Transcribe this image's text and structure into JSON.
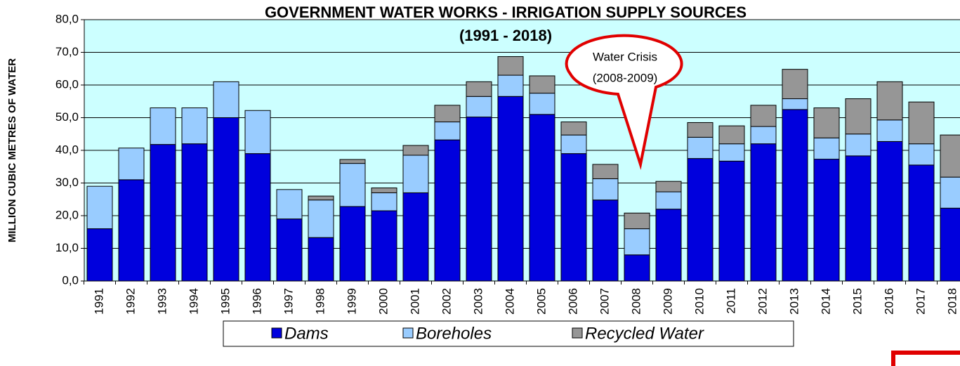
{
  "chart_data": {
    "type": "stacked_bar",
    "title": "GOVERNMENT WATER WORKS - IRRIGATION SUPPLY SOURCES",
    "subtitle": "(1991 - 2018)",
    "y_label": "MILLION CUBIC METRES OF WATER",
    "annotation": [
      "Water Crisis",
      "(2008-2009)"
    ],
    "categories": [
      "1991",
      "1992",
      "1993",
      "1994",
      "1995",
      "1996",
      "1997",
      "1998",
      "1999",
      "2000",
      "2001",
      "2002",
      "2003",
      "2004",
      "2005",
      "2006",
      "2007",
      "2008",
      "2009",
      "2010",
      "2011",
      "2012",
      "2013",
      "2014",
      "2015",
      "2016",
      "2017",
      "2018"
    ],
    "series": [
      {
        "name": "Dams",
        "color": "#0000dd",
        "values": [
          16,
          31,
          41.8,
          42,
          50,
          39,
          19,
          13.3,
          22.8,
          21.5,
          27,
          43.2,
          50.2,
          56.5,
          51,
          39,
          24.8,
          8,
          22,
          37.5,
          36.7,
          42,
          52.5,
          37.3,
          38.3,
          42.7,
          35.5,
          22.3
        ]
      },
      {
        "name": "Boreholes",
        "color": "#99ccff",
        "values": [
          13,
          9.7,
          11.2,
          11,
          11,
          13.2,
          9,
          11.5,
          13.2,
          5.5,
          11.5,
          5.5,
          6.3,
          6.5,
          6.5,
          5.7,
          6.5,
          8,
          5.3,
          6.5,
          5.3,
          5.3,
          3.3,
          6.5,
          6.7,
          6.6,
          6.5,
          9.5
        ]
      },
      {
        "name": "Recycled Water",
        "color": "#969696",
        "values": [
          0,
          0,
          0,
          0,
          0,
          0,
          0,
          1.2,
          1.2,
          1.5,
          3,
          5.1,
          4.5,
          5.7,
          5.3,
          4,
          4.4,
          4.8,
          3.2,
          4.5,
          5.5,
          6.5,
          9,
          9.2,
          10.8,
          11.7,
          12.8,
          12.9
        ]
      }
    ],
    "ylim": [
      0,
      80
    ],
    "yticks": [
      {
        "value": 0,
        "label": "0,0"
      },
      {
        "value": 10,
        "label": "10,0"
      },
      {
        "value": 20,
        "label": "20,0"
      },
      {
        "value": 30,
        "label": "30,0"
      },
      {
        "value": 40,
        "label": "40,0"
      },
      {
        "value": 50,
        "label": "50,0"
      },
      {
        "value": 60,
        "label": "60,0"
      },
      {
        "value": 70,
        "label": "70,0"
      },
      {
        "value": 80,
        "label": "80,0"
      }
    ],
    "grid": true,
    "legend": "bottom",
    "plot_background": "#ccffff"
  }
}
